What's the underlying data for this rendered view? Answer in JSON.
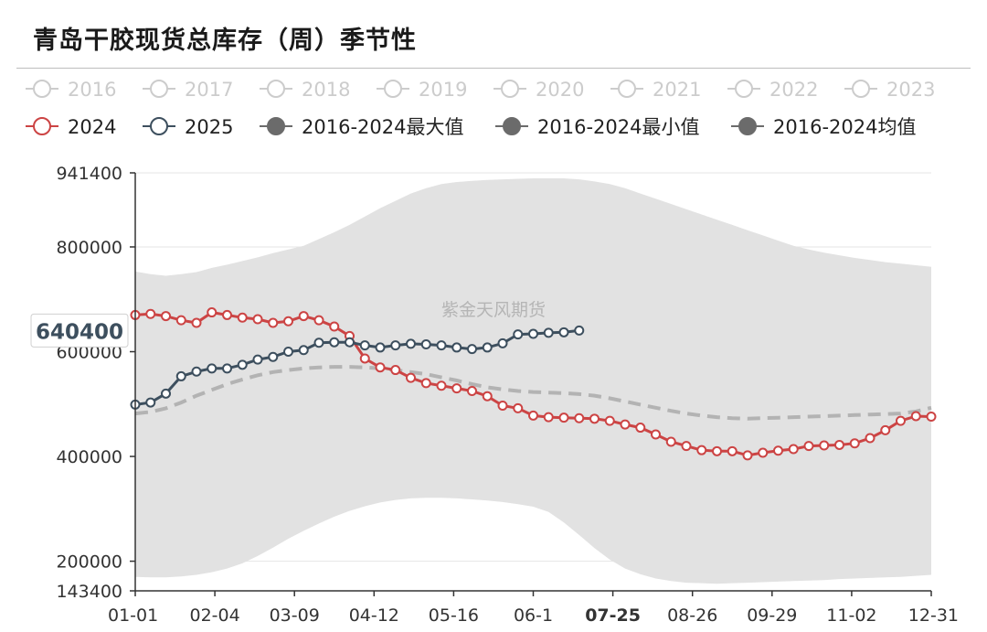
{
  "title": "青岛干胶现货总库存（周）季节性",
  "watermark": "紫金天风期货",
  "colors": {
    "band": "#e2e2e2",
    "avg": "#b3b3b3",
    "s2024": "#cc4444",
    "s2025": "#3d4f5e",
    "legend_inactive": "#cccccc",
    "legend_filled": "#6b6b6b",
    "grid": "#e6e6e6",
    "axis": "#333333"
  },
  "chart_data": {
    "type": "line",
    "title": "青岛干胶现货总库存（周）季节性",
    "xlabel": "",
    "ylabel": "",
    "x_tick_labels": [
      "01-01",
      "02-04",
      "03-09",
      "04-12",
      "05-16",
      "06-1",
      "07-25",
      "08-26",
      "09-29",
      "11-02",
      "12-31"
    ],
    "highlighted_x_label": "07-25",
    "y_tick_labels": [
      "143400",
      "200000",
      "400000",
      "600000",
      "800000",
      "941400"
    ],
    "y_ticks": [
      143400,
      200000,
      400000,
      600000,
      800000,
      941400
    ],
    "ylim": [
      143400,
      941400
    ],
    "x_range_weeks": [
      0,
      52
    ],
    "highlighted_y_label": "640400",
    "highlighted_y_value": 640400,
    "grid": "horizontal",
    "legend_position": "top",
    "legend_row1": [
      {
        "name": "2016",
        "state": "inactive"
      },
      {
        "name": "2017",
        "state": "inactive"
      },
      {
        "name": "2018",
        "state": "inactive"
      },
      {
        "name": "2019",
        "state": "inactive"
      },
      {
        "name": "2020",
        "state": "inactive"
      },
      {
        "name": "2021",
        "state": "inactive"
      },
      {
        "name": "2022",
        "state": "inactive"
      },
      {
        "name": "2023",
        "state": "inactive"
      }
    ],
    "legend_row2": [
      {
        "name": "2024",
        "state": "s2024"
      },
      {
        "name": "2025",
        "state": "s2025"
      },
      {
        "name": "2016-2024最大值",
        "state": "filled"
      },
      {
        "name": "2016-2024最小值",
        "state": "filled"
      },
      {
        "name": "2016-2024均值",
        "state": "filled"
      }
    ],
    "band_weeks": [
      0,
      1,
      2,
      3,
      4,
      5,
      6,
      7,
      8,
      9,
      10,
      11,
      12,
      13,
      14,
      15,
      16,
      17,
      18,
      19,
      20,
      21,
      22,
      23,
      24,
      25,
      26,
      27,
      28,
      29,
      30,
      31,
      32,
      33,
      34,
      35,
      36,
      37,
      38,
      39,
      40,
      41,
      42,
      43,
      44,
      45,
      46,
      47,
      48,
      49,
      50,
      51,
      52
    ],
    "band_max": [
      753000,
      748000,
      745000,
      748000,
      752000,
      760000,
      766000,
      773000,
      780000,
      788000,
      795000,
      802000,
      815000,
      828000,
      842000,
      858000,
      874000,
      888000,
      902000,
      912000,
      920000,
      924000,
      926000,
      928000,
      929000,
      930000,
      931000,
      931000,
      931000,
      929000,
      925000,
      920000,
      912000,
      902000,
      892000,
      882000,
      872000,
      862000,
      852000,
      842000,
      832000,
      822000,
      812000,
      802000,
      795000,
      789000,
      784000,
      779000,
      775000,
      771000,
      768000,
      765000,
      762000
    ],
    "band_min": [
      170000,
      169000,
      169000,
      171000,
      174000,
      179000,
      186000,
      196000,
      210000,
      226000,
      243000,
      258000,
      272000,
      285000,
      296000,
      305000,
      312000,
      317000,
      320000,
      321000,
      321000,
      320000,
      318000,
      316000,
      313000,
      309000,
      304000,
      294000,
      274000,
      250000,
      225000,
      203000,
      186000,
      175000,
      167000,
      162000,
      159000,
      158000,
      157000,
      158000,
      159000,
      160000,
      161000,
      162000,
      163000,
      164000,
      166000,
      167000,
      168000,
      169000,
      170000,
      172000,
      174000
    ],
    "avg": [
      482000,
      485000,
      492000,
      503000,
      516000,
      527000,
      538000,
      547000,
      555000,
      561000,
      565000,
      568000,
      570000,
      571000,
      571000,
      570000,
      568000,
      565000,
      561000,
      557000,
      551000,
      545000,
      538000,
      532000,
      528000,
      525000,
      523000,
      522000,
      521000,
      519000,
      516000,
      511000,
      505000,
      499000,
      493000,
      487000,
      482000,
      478000,
      475000,
      473000,
      472000,
      473000,
      474000,
      475000,
      476000,
      477000,
      478000,
      479000,
      480000,
      481000,
      482000,
      486000,
      493000
    ],
    "series": [
      {
        "name": "2024",
        "x": [
          0,
          1,
          2,
          3,
          4,
          5,
          6,
          7,
          8,
          9,
          10,
          11,
          12,
          13,
          14,
          15,
          16,
          17,
          18,
          19,
          20,
          21,
          22,
          23,
          24,
          25,
          26,
          27,
          28,
          29,
          30,
          31,
          32,
          33,
          34,
          35,
          36,
          37,
          38,
          39,
          40,
          41,
          42,
          43,
          44,
          45,
          46,
          47,
          48,
          49,
          50,
          51,
          52
        ],
        "values": [
          670000,
          672000,
          668000,
          660000,
          655000,
          675000,
          670000,
          665000,
          662000,
          655000,
          658000,
          668000,
          660000,
          648000,
          630000,
          587000,
          570000,
          565000,
          550000,
          540000,
          535000,
          530000,
          525000,
          515000,
          497000,
          492000,
          478000,
          475000,
          474000,
          473000,
          472000,
          468000,
          461000,
          455000,
          442000,
          428000,
          420000,
          412000,
          410000,
          410000,
          402000,
          407000,
          411000,
          414000,
          420000,
          421000,
          422000,
          425000,
          435000,
          450000,
          468000,
          477000,
          476000
        ]
      },
      {
        "name": "2025",
        "x": [
          0,
          1,
          2,
          3,
          4,
          5,
          6,
          7,
          8,
          9,
          10,
          11,
          12,
          13,
          14,
          15,
          16,
          17,
          18,
          19,
          20,
          21,
          22,
          23,
          24,
          25,
          26,
          27,
          28,
          29
        ],
        "values": [
          499000,
          503000,
          520000,
          553000,
          562000,
          568000,
          568000,
          575000,
          585000,
          590000,
          600000,
          603000,
          617000,
          618000,
          618000,
          612000,
          608000,
          612000,
          615000,
          614000,
          612000,
          608000,
          605000,
          608000,
          616000,
          633000,
          634000,
          636000,
          637000,
          640400
        ]
      }
    ]
  }
}
